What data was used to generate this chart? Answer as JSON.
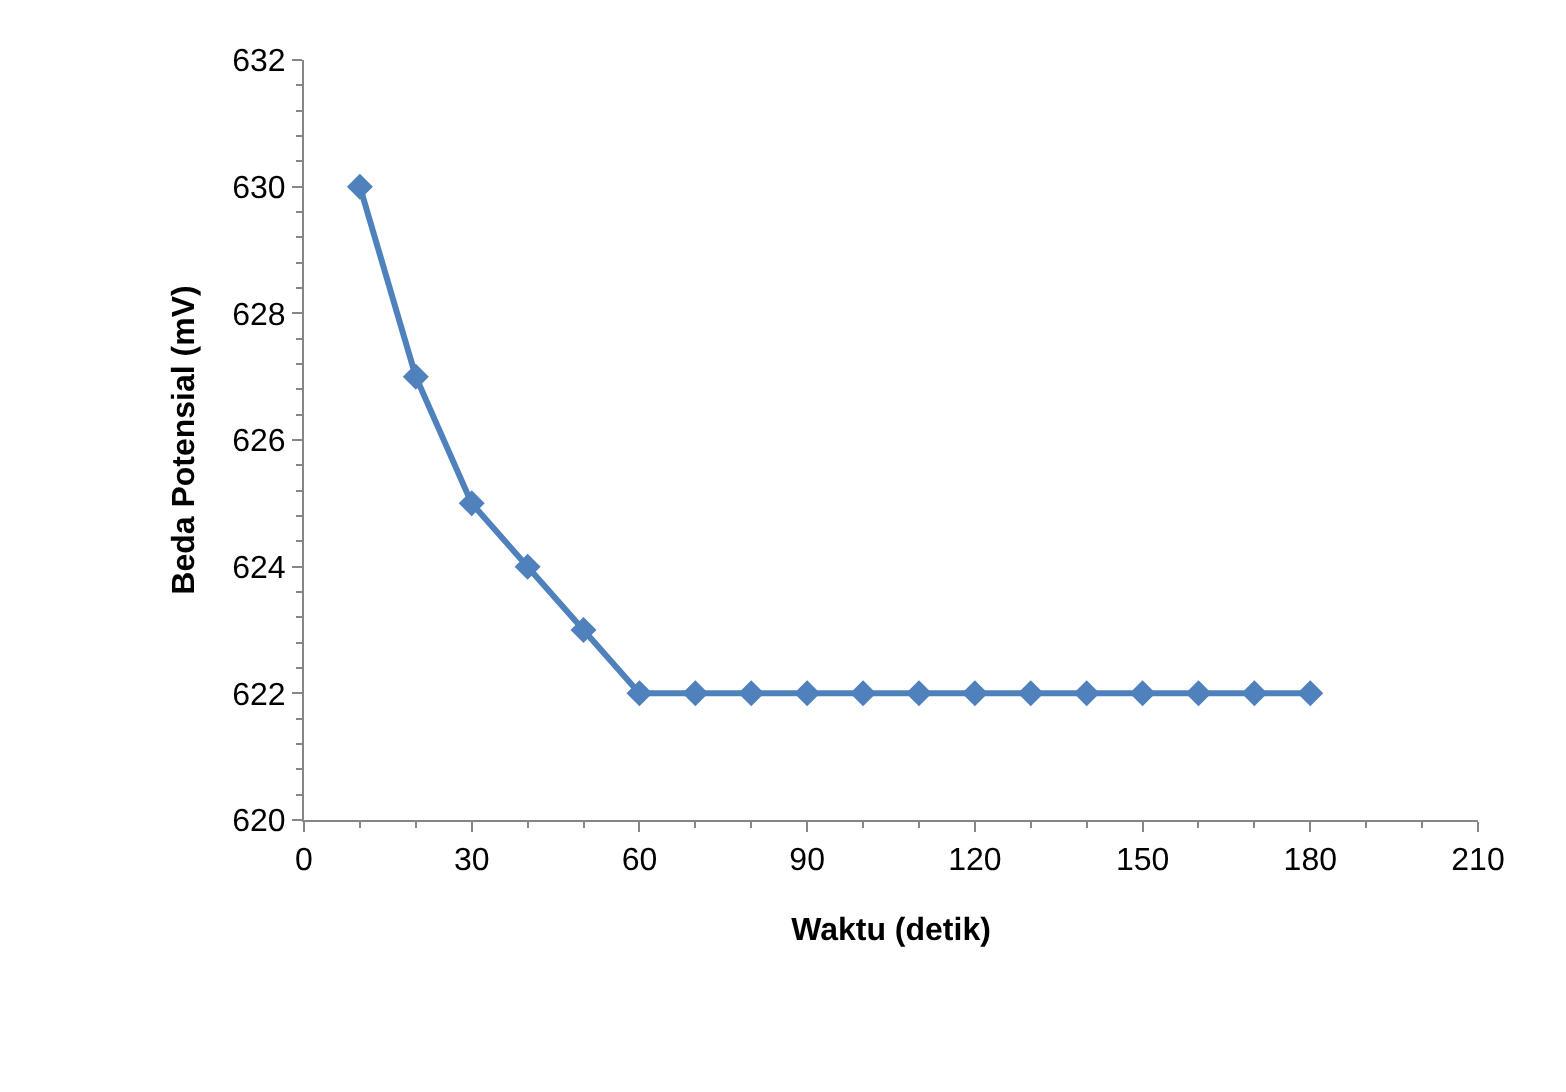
{
  "chart_data": {
    "type": "line",
    "xlabel": "Waktu (detik)",
    "ylabel": "Beda Potensial (mV)",
    "x": [
      10,
      20,
      30,
      40,
      50,
      60,
      70,
      80,
      90,
      100,
      110,
      120,
      130,
      140,
      150,
      160,
      170,
      180
    ],
    "series": [
      {
        "color": "#4f81bd",
        "values": [
          630,
          627,
          625,
          624,
          623,
          622,
          622,
          622,
          622,
          622,
          622,
          622,
          622,
          622,
          622,
          622,
          622,
          622
        ]
      }
    ],
    "xlim": [
      0,
      210
    ],
    "xticks": [
      0,
      30,
      60,
      90,
      120,
      150,
      180,
      210
    ],
    "ylim": [
      620,
      632
    ],
    "yticks": [
      620,
      622,
      624,
      626,
      628,
      630,
      632
    ],
    "grid": false,
    "marker": "diamond",
    "line_style": "solid"
  }
}
